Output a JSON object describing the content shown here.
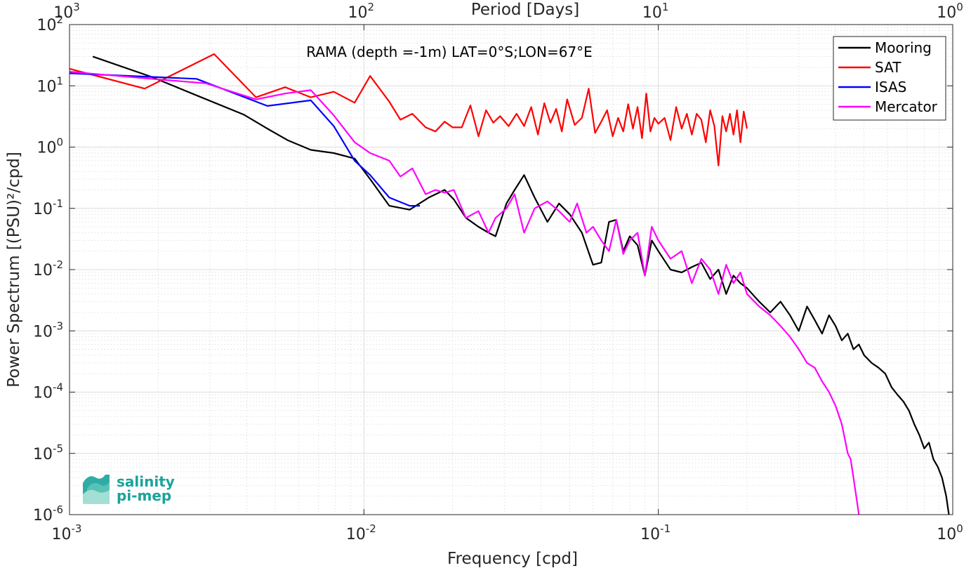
{
  "chart_data": {
    "type": "line",
    "title": "RAMA (depth =-1m) LAT=0°S;LON=67°E",
    "xlabel": "Frequency [cpd]",
    "ylabel": "Power Spectrum [(PSU)²/cpd]",
    "x2label": "Period [Days]",
    "x_scale": "log",
    "y_scale": "log",
    "xlim": [
      0.001,
      1
    ],
    "ylim": [
      1e-06,
      100
    ],
    "grid": true,
    "minor_grid": true,
    "legend_position": "top-right",
    "x_ticks": [
      "10",
      "10",
      "10",
      "10"
    ],
    "x_tick_exps": [
      "-3",
      "-2",
      "-1",
      "0"
    ],
    "x2_ticks": [
      "10",
      "10",
      "10",
      "10"
    ],
    "x2_tick_exps": [
      "3",
      "2",
      "1",
      "0"
    ],
    "y_ticks": [
      "10",
      "10",
      "10",
      "10",
      "10",
      "10",
      "10",
      "10",
      "10"
    ],
    "y_tick_exps": [
      "-6",
      "-5",
      "-4",
      "-3",
      "-2",
      "-1",
      "0",
      "1",
      "2"
    ],
    "series": [
      {
        "name": "Mooring",
        "color": "#000000",
        "x": [
          0.0012,
          0.0019,
          0.0027,
          0.0039,
          0.0047,
          0.0055,
          0.0066,
          0.0079,
          0.0093,
          0.0105,
          0.0122,
          0.0143,
          0.0166,
          0.0188,
          0.0202,
          0.0222,
          0.0245,
          0.0265,
          0.028,
          0.0305,
          0.0325,
          0.035,
          0.038,
          0.042,
          0.046,
          0.05,
          0.055,
          0.06,
          0.064,
          0.068,
          0.072,
          0.076,
          0.08,
          0.085,
          0.09,
          0.095,
          0.1,
          0.11,
          0.12,
          0.13,
          0.14,
          0.15,
          0.16,
          0.17,
          0.18,
          0.19,
          0.2,
          0.22,
          0.24,
          0.26,
          0.28,
          0.3,
          0.32,
          0.34,
          0.36,
          0.38,
          0.4,
          0.42,
          0.44,
          0.46,
          0.48,
          0.5,
          0.53,
          0.56,
          0.59,
          0.62,
          0.65,
          0.68,
          0.71,
          0.74,
          0.77,
          0.8,
          0.83,
          0.86,
          0.89,
          0.92,
          0.95,
          0.97
        ],
        "y": [
          30,
          14,
          7,
          3.4,
          2.0,
          1.3,
          0.9,
          0.8,
          0.65,
          0.3,
          0.11,
          0.095,
          0.15,
          0.2,
          0.14,
          0.07,
          0.05,
          0.04,
          0.035,
          0.12,
          0.2,
          0.35,
          0.15,
          0.06,
          0.12,
          0.08,
          0.04,
          0.012,
          0.013,
          0.06,
          0.065,
          0.02,
          0.035,
          0.025,
          0.008,
          0.03,
          0.02,
          0.01,
          0.009,
          0.011,
          0.013,
          0.007,
          0.01,
          0.004,
          0.008,
          0.006,
          0.005,
          0.003,
          0.002,
          0.003,
          0.0018,
          0.001,
          0.0025,
          0.0015,
          0.0009,
          0.0018,
          0.0012,
          0.0007,
          0.0009,
          0.0005,
          0.0006,
          0.0004,
          0.0003,
          0.00025,
          0.0002,
          0.00012,
          9e-05,
          7e-05,
          5e-05,
          3e-05,
          2e-05,
          1.2e-05,
          1.5e-05,
          8e-06,
          6e-06,
          4e-06,
          2e-06,
          1e-06
        ]
      },
      {
        "name": "SAT",
        "color": "#ff0000",
        "x": [
          0.001,
          0.0018,
          0.0031,
          0.0043,
          0.0054,
          0.0066,
          0.0079,
          0.0093,
          0.0105,
          0.0122,
          0.0133,
          0.0146,
          0.0162,
          0.0175,
          0.0188,
          0.02,
          0.0215,
          0.023,
          0.0245,
          0.026,
          0.0275,
          0.029,
          0.031,
          0.033,
          0.035,
          0.037,
          0.039,
          0.041,
          0.043,
          0.045,
          0.047,
          0.049,
          0.052,
          0.055,
          0.058,
          0.061,
          0.064,
          0.067,
          0.07,
          0.073,
          0.076,
          0.079,
          0.082,
          0.085,
          0.088,
          0.091,
          0.094,
          0.097,
          0.1,
          0.105,
          0.11,
          0.115,
          0.12,
          0.125,
          0.13,
          0.135,
          0.14,
          0.145,
          0.15,
          0.155,
          0.16,
          0.165,
          0.17,
          0.175,
          0.18,
          0.185,
          0.19,
          0.195,
          0.2
        ],
        "y": [
          19,
          9,
          33,
          6.5,
          9.5,
          6.5,
          8,
          5.3,
          14.5,
          5.5,
          2.8,
          3.5,
          2.1,
          1.8,
          2.6,
          2.1,
          2.1,
          4.8,
          1.5,
          4,
          2.5,
          3.2,
          2.2,
          3.5,
          2.2,
          4.5,
          1.6,
          5.2,
          2.5,
          4.2,
          1.8,
          6,
          2.3,
          3,
          9,
          1.7,
          2.6,
          4,
          1.5,
          3,
          1.8,
          5,
          2,
          4.5,
          1.4,
          7.5,
          1.8,
          3,
          2.4,
          3,
          1.3,
          4.5,
          2,
          3.5,
          1.6,
          3.5,
          2.8,
          1.2,
          4,
          2.2,
          0.5,
          3.2,
          1.8,
          3.5,
          1.6,
          4,
          1.2,
          3.8,
          2
        ]
      },
      {
        "name": "ISAS",
        "color": "#0000ff",
        "x": [
          0.001,
          0.0027,
          0.0047,
          0.0066,
          0.0079,
          0.0093,
          0.0105,
          0.0122,
          0.0143,
          0.0155
        ],
        "y": [
          16,
          13,
          4.7,
          5.8,
          2.2,
          0.6,
          0.35,
          0.15,
          0.11,
          0.11
        ]
      },
      {
        "name": "Mercator",
        "color": "#ff00ff",
        "x": [
          0.001,
          0.0019,
          0.0029,
          0.0043,
          0.0054,
          0.0066,
          0.0079,
          0.0093,
          0.0105,
          0.0122,
          0.0133,
          0.0146,
          0.0162,
          0.0175,
          0.0188,
          0.0202,
          0.0222,
          0.0245,
          0.0265,
          0.028,
          0.0305,
          0.0325,
          0.035,
          0.038,
          0.042,
          0.046,
          0.05,
          0.053,
          0.057,
          0.06,
          0.064,
          0.068,
          0.072,
          0.076,
          0.08,
          0.085,
          0.09,
          0.095,
          0.1,
          0.11,
          0.12,
          0.13,
          0.14,
          0.15,
          0.16,
          0.17,
          0.18,
          0.19,
          0.2,
          0.22,
          0.24,
          0.26,
          0.28,
          0.3,
          0.32,
          0.34,
          0.36,
          0.38,
          0.4,
          0.42,
          0.44,
          0.45,
          0.46,
          0.47,
          0.48
        ],
        "y": [
          17,
          13,
          11,
          6,
          7.5,
          8.5,
          3.3,
          1.2,
          0.8,
          0.6,
          0.33,
          0.45,
          0.17,
          0.2,
          0.18,
          0.2,
          0.07,
          0.09,
          0.04,
          0.07,
          0.1,
          0.17,
          0.04,
          0.1,
          0.13,
          0.09,
          0.06,
          0.12,
          0.04,
          0.05,
          0.03,
          0.02,
          0.065,
          0.018,
          0.03,
          0.04,
          0.008,
          0.05,
          0.03,
          0.015,
          0.02,
          0.006,
          0.015,
          0.01,
          0.004,
          0.012,
          0.006,
          0.009,
          0.004,
          0.0025,
          0.0018,
          0.0012,
          0.0008,
          0.0005,
          0.0003,
          0.00025,
          0.00015,
          0.0001,
          6e-05,
          3e-05,
          1e-05,
          8e-06,
          4e-06,
          2e-06,
          1e-06
        ]
      }
    ]
  },
  "logo": {
    "line1": "salinity",
    "line2": "pi-mep"
  }
}
